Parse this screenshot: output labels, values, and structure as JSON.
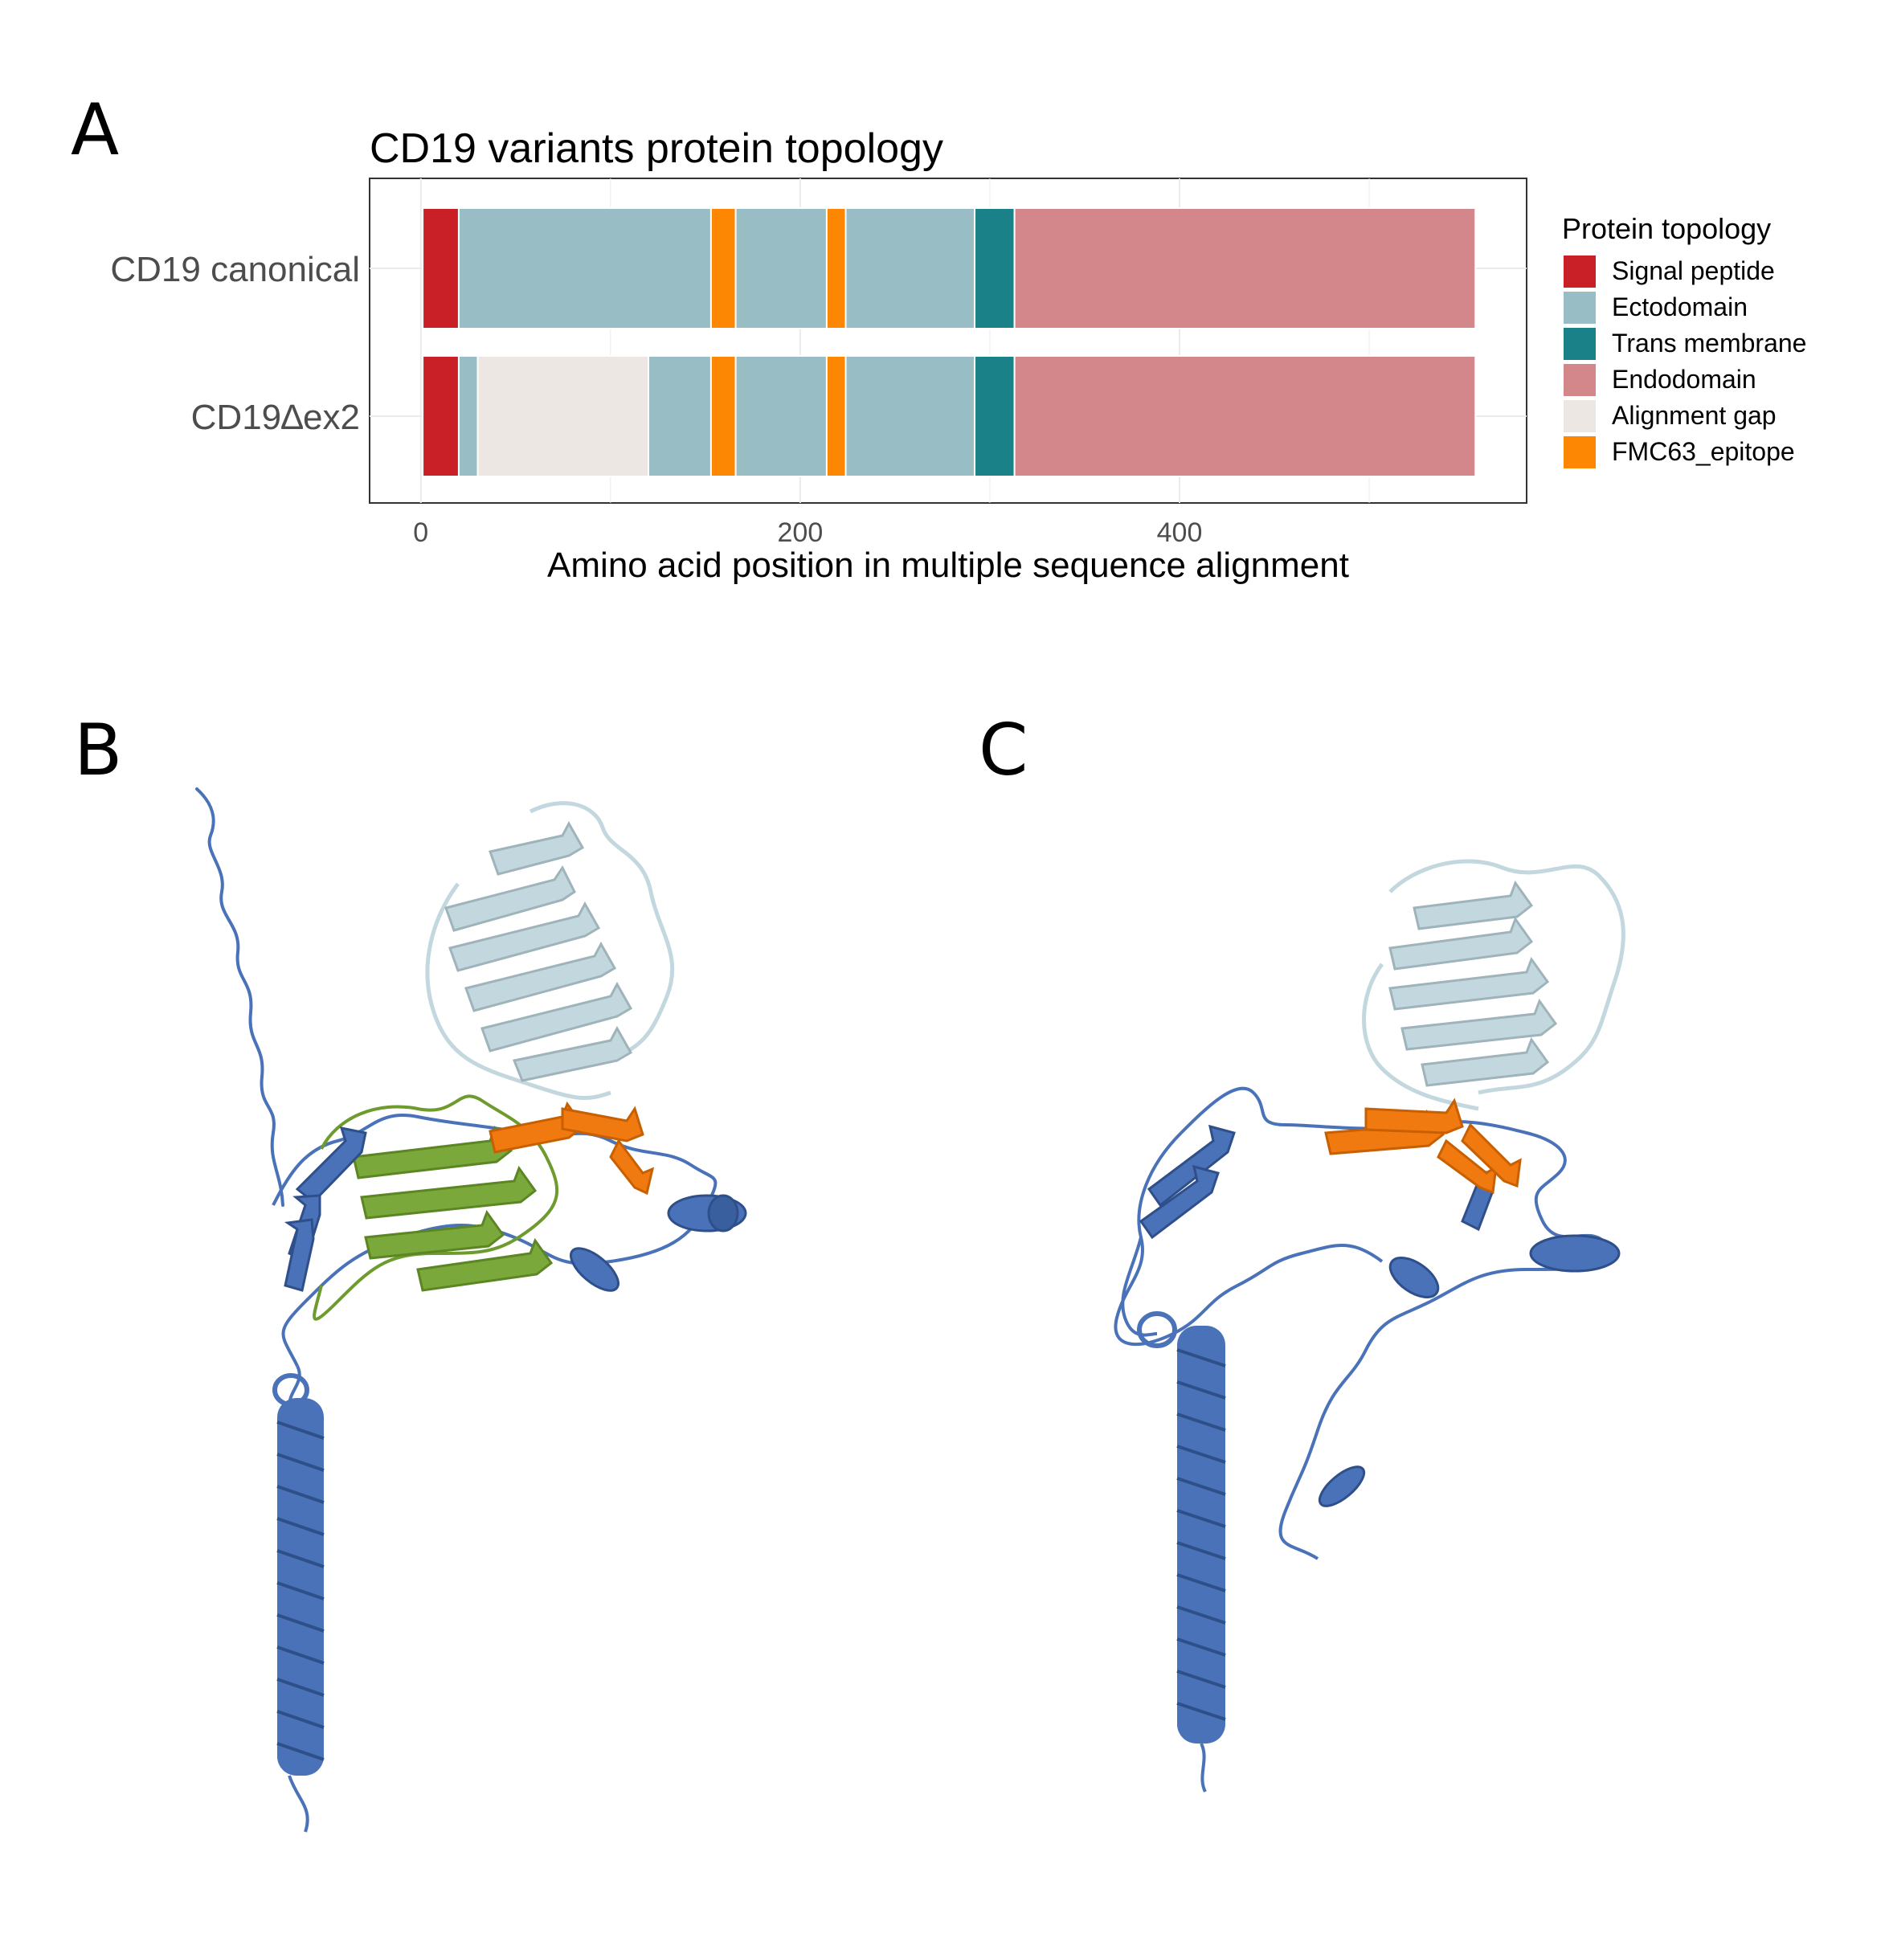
{
  "panels": {
    "a": "A",
    "b": "B",
    "c": "C"
  },
  "chart_data": {
    "type": "bar",
    "orientation": "horizontal-stacked-segments",
    "title": "CD19 variants protein topology",
    "xlabel": "Amino acid position in multiple sequence alignment",
    "ylabel": "",
    "xlim": [
      -27,
      583
    ],
    "xticks": [
      0,
      200,
      400
    ],
    "grid": true,
    "legend": {
      "title": "Protein topology",
      "position": "right",
      "entries": [
        {
          "name": "Signal peptide",
          "color": "#c91f26"
        },
        {
          "name": "Ectodomain",
          "color": "#99bdc5"
        },
        {
          "name": "Trans membrane",
          "color": "#1a8188"
        },
        {
          "name": "Endodomain",
          "color": "#d3878a"
        },
        {
          "name": "Alignment gap",
          "color": "#ece7e3"
        },
        {
          "name": "FMC63_epitope",
          "color": "#fd8703"
        }
      ]
    },
    "categories": [
      "CD19 canonical",
      "CD19∆ex2"
    ],
    "series": [
      {
        "category": "CD19 canonical",
        "segments": [
          {
            "type": "Signal peptide",
            "start": 1,
            "end": 20
          },
          {
            "type": "Ectodomain",
            "start": 20,
            "end": 153
          },
          {
            "type": "FMC63_epitope",
            "start": 153,
            "end": 166
          },
          {
            "type": "Ectodomain",
            "start": 166,
            "end": 214
          },
          {
            "type": "FMC63_epitope",
            "start": 214,
            "end": 224
          },
          {
            "type": "Ectodomain",
            "start": 224,
            "end": 292
          },
          {
            "type": "Trans membrane",
            "start": 292,
            "end": 313
          },
          {
            "type": "Endodomain",
            "start": 313,
            "end": 556
          }
        ]
      },
      {
        "category": "CD19∆ex2",
        "segments": [
          {
            "type": "Signal peptide",
            "start": 1,
            "end": 20
          },
          {
            "type": "Ectodomain",
            "start": 20,
            "end": 30
          },
          {
            "type": "Alignment gap",
            "start": 30,
            "end": 120
          },
          {
            "type": "Ectodomain",
            "start": 120,
            "end": 153
          },
          {
            "type": "FMC63_epitope",
            "start": 153,
            "end": 166
          },
          {
            "type": "Ectodomain",
            "start": 166,
            "end": 214
          },
          {
            "type": "FMC63_epitope",
            "start": 214,
            "end": 224
          },
          {
            "type": "Ectodomain",
            "start": 224,
            "end": 292
          },
          {
            "type": "Trans membrane",
            "start": 292,
            "end": 313
          },
          {
            "type": "Endodomain",
            "start": 313,
            "end": 556
          }
        ]
      }
    ]
  },
  "structure_colors": {
    "scfv": "#c3d8de",
    "scfv_shade": "#9fb3ba",
    "cd19": "#4a72b8",
    "cd19_dark": "#2f4f8a",
    "exon2": "#6e9b2e",
    "epitope": "#f07a10",
    "epitope_dark": "#c85f00"
  }
}
